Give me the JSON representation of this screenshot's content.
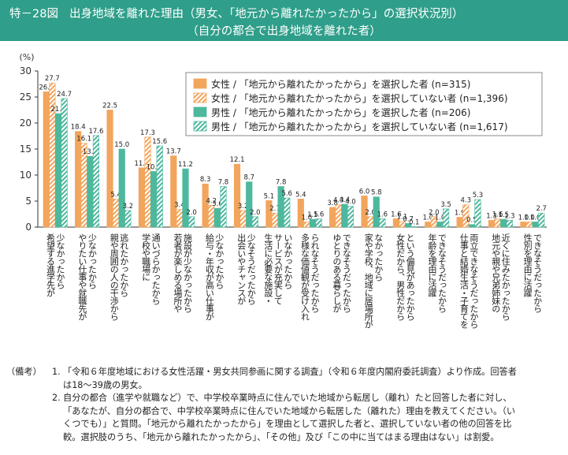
{
  "header": {
    "label": "特－28図",
    "title_line1": "出身地域を離れた理由（男女、「地元から離れたかったから」の選択状況別）",
    "title_line2": "（自分の都合で出身地域を離れた者）"
  },
  "chart_data": {
    "type": "bar",
    "ylabel": "(%)",
    "ylim": [
      0,
      30
    ],
    "yticks": [
      0,
      5,
      10,
      15,
      20,
      25,
      30
    ],
    "categories": [
      "少なかったから\n希望する進学先が",
      "少なかったから\nやりたい仕事や就職先が",
      "逃れたかったから\n親や周囲の人の干渉から",
      "通いづらかったから\n学校や職場に",
      "施設が少なかったから\n若者が楽しめる場所や",
      "少なかったから\n給与・年収が高い仕事が",
      "少なそうだったから\n出会いやチャンスが",
      "いなかったから\nサービスが充実して\n生活に必要な施設・",
      "られなそうだったから\n多様な価値観が受け入れ",
      "できなそうだったから\nゆとりのある暮らしが",
      "なかったから\n家や学校、地域に居場所が",
      "という偏見があったから\n女性だから、男性だから",
      "できなそうだったから\n年齢を理由に活躍",
      "両立できなそうだったから\n仕事と結婚生活・子育てを",
      "近くに住みたかったから\n地元や親や兄弟姉妹の",
      "できなそうだったから\n性別を理由に活躍"
    ],
    "series": [
      {
        "name": "女性 / 「地元から離れたかったから」を選択した者 (n=315)",
        "values": [
          26.0,
          18.4,
          22.5,
          11.4,
          13.7,
          8.3,
          12.1,
          5.1,
          5.4,
          3.8,
          6.0,
          1.6,
          1.0,
          1.9,
          1.3,
          1.0
        ],
        "color": "#f2a55c",
        "pattern": "solid"
      },
      {
        "name": "女性 / 「地元から離れたかったから」を選択していない者 (n=1,396)",
        "values": [
          27.7,
          16.1,
          5.4,
          17.3,
          3.4,
          4.2,
          3.2,
          2.7,
          1.0,
          4.3,
          2.0,
          1.1,
          2.0,
          4.3,
          1.6,
          1.0
        ],
        "color": "#f2a55c",
        "pattern": "stripe"
      },
      {
        "name": "男性 / 「地元から離れたかったから」を選択した者 (n=206)",
        "values": [
          21.8,
          13.6,
          15.0,
          10.7,
          11.2,
          3.6,
          8.7,
          7.8,
          1.5,
          4.4,
          5.8,
          0.7,
          1.0,
          0.5,
          1.5,
          1.0
        ],
        "color": "#4db89d",
        "pattern": "solid"
      },
      {
        "name": "男性 / 「地元から離れたかったから」を選択していない者 (n=1,617)",
        "values": [
          24.7,
          17.6,
          3.2,
          15.6,
          2.0,
          7.8,
          2.0,
          5.6,
          1.6,
          4.0,
          1.6,
          0.1,
          3.5,
          5.3,
          1.3,
          2.7
        ],
        "color": "#4db89d",
        "pattern": "stripe"
      }
    ]
  },
  "notes": {
    "lead": "（備考）",
    "items": [
      {
        "num": "1.",
        "lines": [
          "「令和６年度地域における女性活躍・男女共同参画に関する調査」（令和６年度内閣府委託調査）より作成。回答者",
          "は18～39歳の男女。"
        ]
      },
      {
        "num": "2.",
        "lines": [
          "自分の都合（進学や就職など）で、中学校卒業時点に住んでいた地域から転居し（離れ）たと回答した者に対し、",
          "「あなたが、自分の都合で、中学校卒業時点に住んでいた地域から転居した（離れた）理由を教えてください。（い",
          "くつでも）」と質問。「地元から離れたかったから」を理由として選択した者と、選択していない者の他の回答を比",
          "較。選択肢のうち、「地元から離れたかったから」、「その他」及び「この中に当てはまる理由はない」は割愛。"
        ]
      }
    ]
  }
}
